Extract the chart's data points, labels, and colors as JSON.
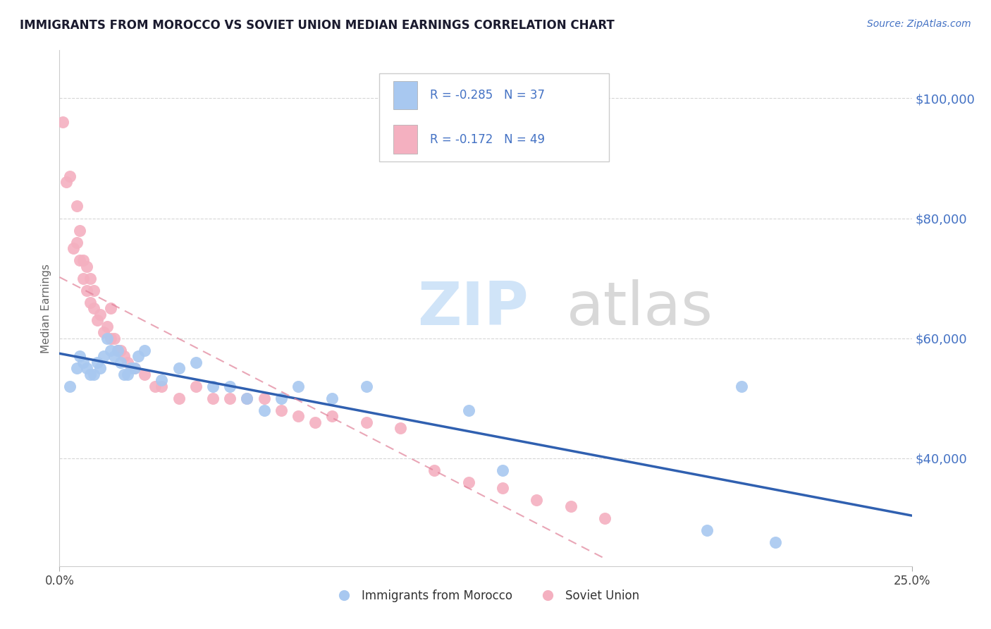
{
  "title": "IMMIGRANTS FROM MOROCCO VS SOVIET UNION MEDIAN EARNINGS CORRELATION CHART",
  "source_text": "Source: ZipAtlas.com",
  "ylabel": "Median Earnings",
  "xlim": [
    0.0,
    0.25
  ],
  "ylim": [
    22000,
    108000
  ],
  "yticks": [
    40000,
    60000,
    80000,
    100000
  ],
  "ytick_labels": [
    "$40,000",
    "$60,000",
    "$80,000",
    "$100,000"
  ],
  "legend_labels": [
    "Immigrants from Morocco",
    "Soviet Union"
  ],
  "r_morocco": -0.285,
  "n_morocco": 37,
  "r_soviet": -0.172,
  "n_soviet": 49,
  "morocco_scatter_color": "#a8c8f0",
  "soviet_scatter_color": "#f4b0c0",
  "trendline_morocco_color": "#3060b0",
  "trendline_soviet_color": "#e08098",
  "background_color": "#ffffff",
  "watermark_zip_color": "#d0e4f8",
  "watermark_atlas_color": "#d8d8d8",
  "morocco_x": [
    0.003,
    0.005,
    0.006,
    0.007,
    0.008,
    0.009,
    0.01,
    0.011,
    0.012,
    0.013,
    0.014,
    0.015,
    0.016,
    0.017,
    0.018,
    0.019,
    0.02,
    0.021,
    0.022,
    0.023,
    0.025,
    0.03,
    0.035,
    0.04,
    0.045,
    0.05,
    0.055,
    0.06,
    0.065,
    0.07,
    0.08,
    0.09,
    0.12,
    0.13,
    0.19,
    0.2,
    0.21
  ],
  "morocco_y": [
    52000,
    55000,
    57000,
    56000,
    55000,
    54000,
    54000,
    56000,
    55000,
    57000,
    60000,
    58000,
    57000,
    58000,
    56000,
    54000,
    54000,
    55000,
    55000,
    57000,
    58000,
    53000,
    55000,
    56000,
    52000,
    52000,
    50000,
    48000,
    50000,
    52000,
    50000,
    52000,
    48000,
    38000,
    28000,
    52000,
    26000
  ],
  "soviet_x": [
    0.001,
    0.002,
    0.003,
    0.004,
    0.005,
    0.005,
    0.006,
    0.006,
    0.007,
    0.007,
    0.008,
    0.008,
    0.009,
    0.009,
    0.01,
    0.01,
    0.011,
    0.012,
    0.013,
    0.014,
    0.015,
    0.015,
    0.016,
    0.017,
    0.018,
    0.019,
    0.02,
    0.022,
    0.025,
    0.028,
    0.03,
    0.035,
    0.04,
    0.045,
    0.05,
    0.055,
    0.06,
    0.065,
    0.07,
    0.075,
    0.08,
    0.09,
    0.1,
    0.11,
    0.12,
    0.13,
    0.14,
    0.15,
    0.16
  ],
  "soviet_y": [
    96000,
    86000,
    87000,
    75000,
    76000,
    82000,
    73000,
    78000,
    70000,
    73000,
    68000,
    72000,
    66000,
    70000,
    65000,
    68000,
    63000,
    64000,
    61000,
    62000,
    60000,
    65000,
    60000,
    58000,
    58000,
    57000,
    56000,
    55000,
    54000,
    52000,
    52000,
    50000,
    52000,
    50000,
    50000,
    50000,
    50000,
    48000,
    47000,
    46000,
    47000,
    46000,
    45000,
    38000,
    36000,
    35000,
    33000,
    32000,
    30000
  ]
}
